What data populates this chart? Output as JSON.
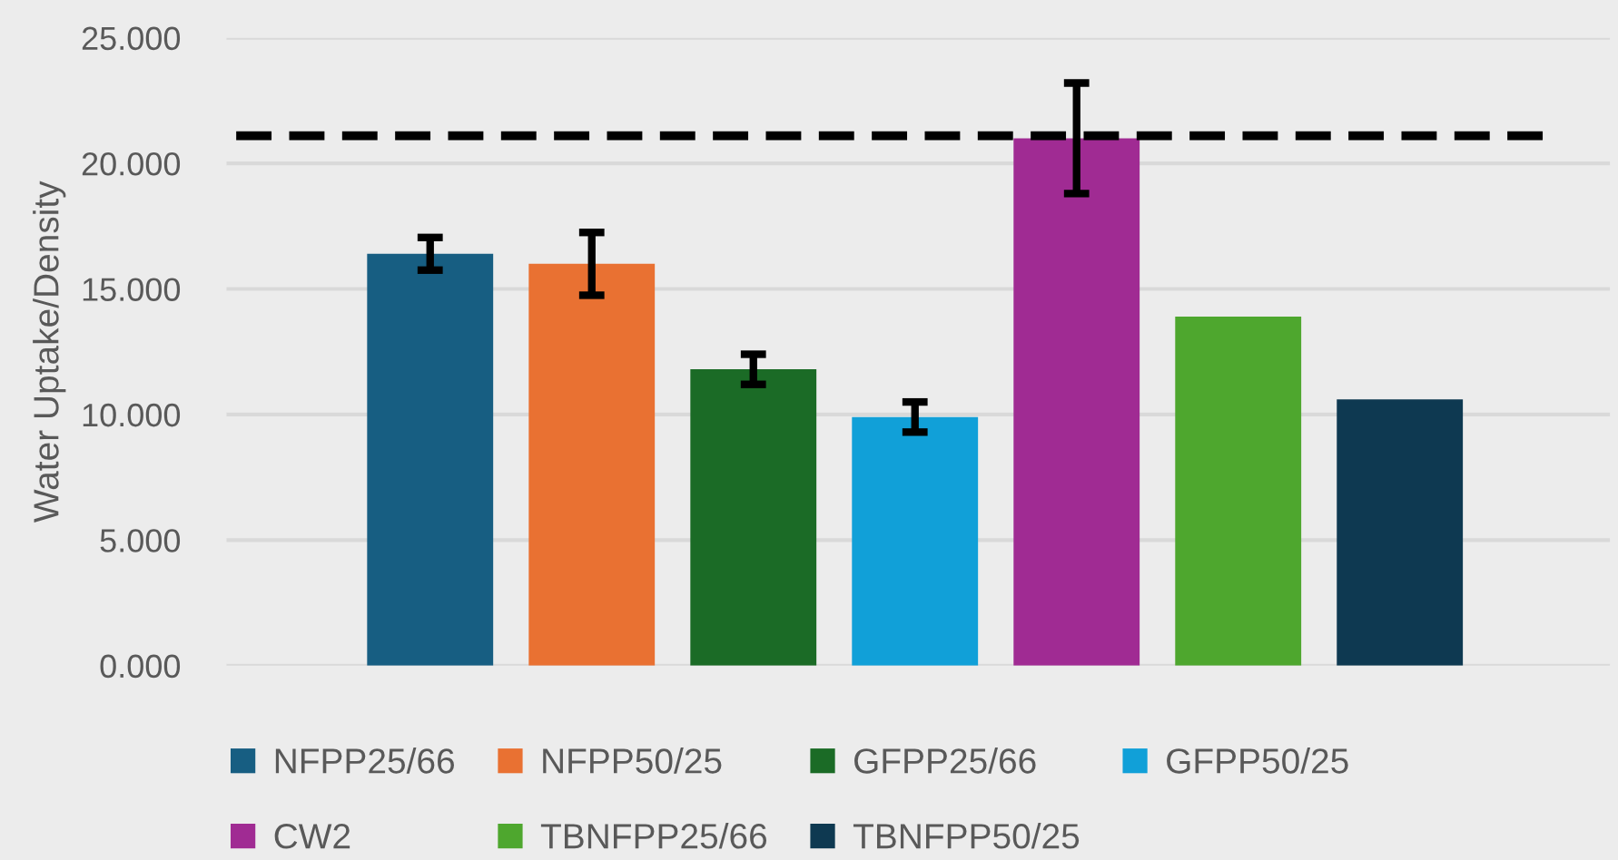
{
  "chart_data": {
    "type": "bar",
    "ylabel": "Water Uptake/Density",
    "categories": [
      null,
      null,
      null,
      null,
      null,
      null,
      null
    ],
    "series": [
      {
        "name": "NFPP25/66",
        "color": "#175e82",
        "values": [
          16.4,
          null,
          null,
          null,
          null,
          null,
          null
        ],
        "errors": [
          0.65,
          null,
          null,
          null,
          null,
          null,
          null
        ]
      },
      {
        "name": "NFPP50/25",
        "color": "#e97132",
        "values": [
          null,
          16.0,
          null,
          null,
          null,
          null,
          null
        ],
        "errors": [
          null,
          1.25,
          null,
          null,
          null,
          null,
          null
        ]
      },
      {
        "name": "GFPP25/66",
        "color": "#1b6b26",
        "values": [
          null,
          null,
          11.8,
          null,
          null,
          null,
          null
        ],
        "errors": [
          null,
          null,
          0.6,
          null,
          null,
          null,
          null
        ]
      },
      {
        "name": "GFPP50/25",
        "color": "#11a0d8",
        "values": [
          null,
          null,
          null,
          9.9,
          null,
          null,
          null
        ],
        "errors": [
          null,
          null,
          null,
          0.6,
          null,
          null,
          null
        ]
      },
      {
        "name": "CW2",
        "color": "#a02b93",
        "values": [
          null,
          null,
          null,
          null,
          21.0,
          null,
          null
        ],
        "errors": [
          null,
          null,
          null,
          null,
          2.2,
          null,
          null
        ]
      },
      {
        "name": "TBNFPP25/66",
        "color": "#4ea72e",
        "values": [
          null,
          null,
          null,
          null,
          null,
          13.9,
          null
        ]
      },
      {
        "name": "TBNFPP50/25",
        "color": "#0e3951",
        "values": [
          null,
          null,
          null,
          null,
          null,
          null,
          10.6
        ]
      }
    ],
    "ylim": [
      0,
      25
    ],
    "yticks": [
      {
        "value": 0,
        "label": "0.000"
      },
      {
        "value": 5,
        "label": "5.000"
      },
      {
        "value": 10,
        "label": "10.000"
      },
      {
        "value": 15,
        "label": "15.000"
      },
      {
        "value": 20,
        "label": "20.000"
      },
      {
        "value": 25,
        "label": "25.000"
      }
    ],
    "ref_lines": [
      {
        "axis": "y",
        "value": 21.1,
        "color": "#000000",
        "line_style": "dashed"
      }
    ],
    "stacked": true,
    "grid": "y",
    "legend": "bottom",
    "tick_labels": "y"
  }
}
